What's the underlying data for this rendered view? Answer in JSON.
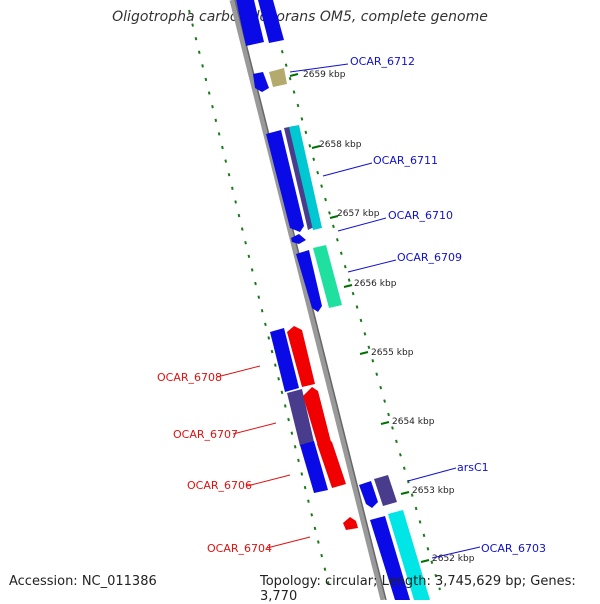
{
  "title": "Oligotropha carboxidovorans OM5, complete genome",
  "footer": {
    "accession": "Accession: NC_011386",
    "topology": "Topology: circular; Length: 3,745,629 bp; Genes: 3,770"
  },
  "ticks": [
    "2659 kbp",
    "2658 kbp",
    "2657 kbp",
    "2656 kbp",
    "2655 kbp",
    "2654 kbp",
    "2653 kbp",
    "2652 kbp"
  ],
  "genes": [
    {
      "name": "OCAR_6712",
      "strand": "forward"
    },
    {
      "name": "OCAR_6711",
      "strand": "forward"
    },
    {
      "name": "OCAR_6710",
      "strand": "forward"
    },
    {
      "name": "OCAR_6709",
      "strand": "forward"
    },
    {
      "name": "OCAR_6708",
      "strand": "reverse"
    },
    {
      "name": "OCAR_6707",
      "strand": "reverse"
    },
    {
      "name": "OCAR_6706",
      "strand": "reverse"
    },
    {
      "name": "OCAR_6704",
      "strand": "reverse"
    },
    {
      "name": "arsC1",
      "strand": "forward"
    },
    {
      "name": "OCAR_6703",
      "strand": "forward"
    }
  ],
  "colors": {
    "forward_label": "#1010d0",
    "reverse_label": "#e01010",
    "cds_blue": "#0a0ae6",
    "cds_red": "#f00000",
    "cds_cyan": "#00e6e6",
    "cds_green": "#20e0a0",
    "cds_purple": "#4a3c8c",
    "cds_khaki": "#b4aa6e",
    "backbone": "#888888",
    "tick_green": "#006400"
  }
}
